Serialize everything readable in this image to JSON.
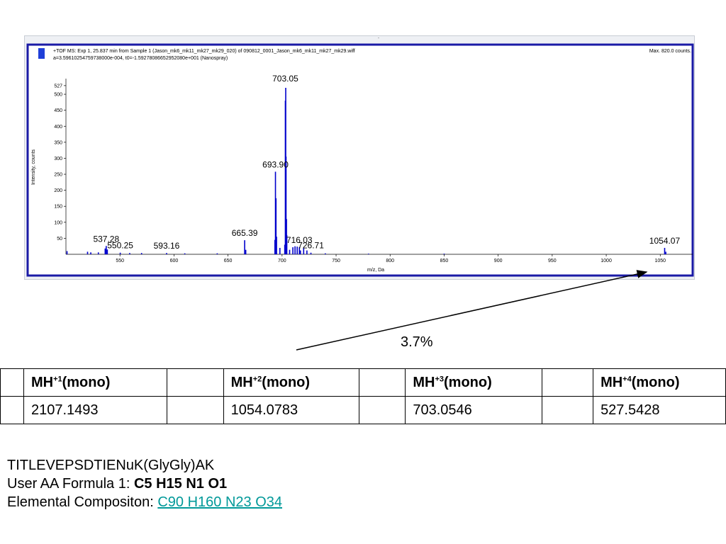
{
  "spectrum": {
    "header_line1": "+TOF MS: Exp 1, 25.837 min from Sample 1 (Jason_mk6_mk11_mk27_mk29_020) of 090812_0001_Jason_mk6_mk11_mk27_mk29.wiff",
    "header_line2": "a=3.59610254759738000e-004, t0=-1.59278086652952080e+001 (Nanospray)",
    "max_label": "Max. 820.0 counts.",
    "top_dot": "."
  },
  "chart_data": {
    "type": "line",
    "xlabel": "m/z, Da",
    "ylabel": "Intensity, counts",
    "xlim": [
      500,
      1080
    ],
    "ylim": [
      0,
      540
    ],
    "x_ticks": [
      550,
      600,
      650,
      700,
      750,
      800,
      850,
      900,
      950,
      1000,
      1050
    ],
    "y_ticks": [
      50,
      100,
      150,
      200,
      250,
      300,
      350,
      400,
      450,
      500,
      527
    ],
    "series": [
      {
        "peaks": [
          {
            "mz": 501,
            "intensity": 10
          },
          {
            "mz": 520,
            "intensity": 8
          },
          {
            "mz": 523,
            "intensity": 6
          },
          {
            "mz": 530,
            "intensity": 6
          },
          {
            "mz": 536.3,
            "intensity": 18
          },
          {
            "mz": 537.28,
            "intensity": 26
          },
          {
            "mz": 538.3,
            "intensity": 15
          },
          {
            "mz": 550.25,
            "intensity": 5
          },
          {
            "mz": 559,
            "intensity": 4
          },
          {
            "mz": 570,
            "intensity": 4
          },
          {
            "mz": 593.16,
            "intensity": 4
          },
          {
            "mz": 610,
            "intensity": 3
          },
          {
            "mz": 640,
            "intensity": 3
          },
          {
            "mz": 665.39,
            "intensity": 44
          },
          {
            "mz": 666.4,
            "intensity": 14
          },
          {
            "mz": 693.4,
            "intensity": 45
          },
          {
            "mz": 693.9,
            "intensity": 258
          },
          {
            "mz": 694.4,
            "intensity": 175
          },
          {
            "mz": 694.9,
            "intensity": 55
          },
          {
            "mz": 698,
            "intensity": 20
          },
          {
            "mz": 702.5,
            "intensity": 30
          },
          {
            "mz": 703.05,
            "intensity": 480
          },
          {
            "mz": 703.4,
            "intensity": 520
          },
          {
            "mz": 703.7,
            "intensity": 305
          },
          {
            "mz": 704.1,
            "intensity": 110
          },
          {
            "mz": 704.4,
            "intensity": 60
          },
          {
            "mz": 707,
            "intensity": 14
          },
          {
            "mz": 710,
            "intensity": 22
          },
          {
            "mz": 712,
            "intensity": 25
          },
          {
            "mz": 714,
            "intensity": 24
          },
          {
            "mz": 716.03,
            "intensity": 22
          },
          {
            "mz": 717,
            "intensity": 12
          },
          {
            "mz": 720,
            "intensity": 20
          },
          {
            "mz": 723,
            "intensity": 12
          },
          {
            "mz": 726.71,
            "intensity": 5
          },
          {
            "mz": 740,
            "intensity": 3
          },
          {
            "mz": 780,
            "intensity": 2
          },
          {
            "mz": 850,
            "intensity": 2
          },
          {
            "mz": 1054.07,
            "intensity": 20
          },
          {
            "mz": 1055.1,
            "intensity": 8
          }
        ]
      }
    ],
    "annotations": [
      {
        "mz": 703.05,
        "intensity": 527,
        "text": "703.05"
      },
      {
        "mz": 693.9,
        "intensity": 258,
        "text": "693.90"
      },
      {
        "mz": 665.39,
        "intensity": 44,
        "text": "665.39"
      },
      {
        "mz": 537.28,
        "intensity": 26,
        "text": "537.28"
      },
      {
        "mz": 550.25,
        "intensity": 5,
        "text": "550.25"
      },
      {
        "mz": 593.16,
        "intensity": 4,
        "text": "593.16"
      },
      {
        "mz": 716.03,
        "intensity": 22,
        "text": "716.03"
      },
      {
        "mz": 726.71,
        "intensity": 5,
        "text": "726.71"
      },
      {
        "mz": 1054.07,
        "intensity": 20,
        "text": "1054.07"
      }
    ],
    "colors": {
      "peaks": "#0000cc",
      "frame_border": "#1a1aa6",
      "legend_marker": "#1f3fd8"
    }
  },
  "callout": {
    "text": "3.7%"
  },
  "mh_table": {
    "headers": [
      {
        "base": "MH",
        "sup": "+1",
        "suffix": "(mono)"
      },
      {
        "base": "MH",
        "sup": "+2",
        "suffix": "(mono)"
      },
      {
        "base": "MH",
        "sup": "+3",
        "suffix": "(mono)"
      },
      {
        "base": "MH",
        "sup": "+4",
        "suffix": "(mono)"
      }
    ],
    "values": [
      "2107.1493",
      "1054.0783",
      "703.0546",
      "527.5428"
    ]
  },
  "info": {
    "peptide": "TITLEVEPSDTIENuK(GlyGly)AK",
    "formula_label": "User AA Formula 1: ",
    "formula_value": "C5 H15 N1 O1",
    "composition_label": "Elemental Compositon: ",
    "composition_value": "C90 H160 N23 O34"
  }
}
